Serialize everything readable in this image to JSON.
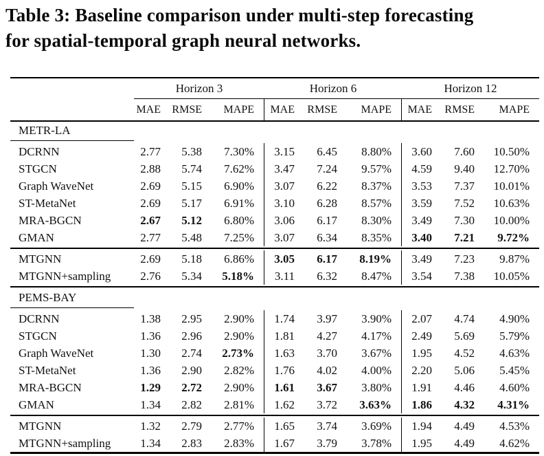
{
  "title": {
    "line1": "Table 3: Baseline comparison under multi-step forecasting",
    "line2": "for spatial-temporal graph neural networks."
  },
  "table": {
    "col_groups": [
      {
        "label": "Horizon 3"
      },
      {
        "label": "Horizon 6"
      },
      {
        "label": "Horizon 12"
      }
    ],
    "sub_headers": [
      "MAE",
      "RMSE",
      "MAPE"
    ],
    "sections": [
      {
        "name": "METR-LA",
        "groups": [
          {
            "rows": [
              {
                "model": "DCRNN",
                "values": [
                  "2.77",
                  "5.38",
                  "7.30%",
                  "3.15",
                  "6.45",
                  "8.80%",
                  "3.60",
                  "7.60",
                  "10.50%"
                ],
                "bold": []
              },
              {
                "model": "STGCN",
                "values": [
                  "2.88",
                  "5.74",
                  "7.62%",
                  "3.47",
                  "7.24",
                  "9.57%",
                  "4.59",
                  "9.40",
                  "12.70%"
                ],
                "bold": []
              },
              {
                "model": "Graph WaveNet",
                "values": [
                  "2.69",
                  "5.15",
                  "6.90%",
                  "3.07",
                  "6.22",
                  "8.37%",
                  "3.53",
                  "7.37",
                  "10.01%"
                ],
                "bold": []
              },
              {
                "model": "ST-MetaNet",
                "values": [
                  "2.69",
                  "5.17",
                  "6.91%",
                  "3.10",
                  "6.28",
                  "8.57%",
                  "3.59",
                  "7.52",
                  "10.63%"
                ],
                "bold": []
              },
              {
                "model": "MRA-BGCN",
                "values": [
                  "2.67",
                  "5.12",
                  "6.80%",
                  "3.06",
                  "6.17",
                  "8.30%",
                  "3.49",
                  "7.30",
                  "10.00%"
                ],
                "bold": [
                  0,
                  1
                ]
              },
              {
                "model": "GMAN",
                "values": [
                  "2.77",
                  "5.48",
                  "7.25%",
                  "3.07",
                  "6.34",
                  "8.35%",
                  "3.40",
                  "7.21",
                  "9.72%"
                ],
                "bold": [
                  6,
                  7,
                  8
                ]
              }
            ]
          },
          {
            "rows": [
              {
                "model": "MTGNN",
                "values": [
                  "2.69",
                  "5.18",
                  "6.86%",
                  "3.05",
                  "6.17",
                  "8.19%",
                  "3.49",
                  "7.23",
                  "9.87%"
                ],
                "bold": [
                  3,
                  4,
                  5
                ]
              },
              {
                "model": "MTGNN+sampling",
                "values": [
                  "2.76",
                  "5.34",
                  "5.18%",
                  "3.11",
                  "6.32",
                  "8.47%",
                  "3.54",
                  "7.38",
                  "10.05%"
                ],
                "bold": [
                  2
                ]
              }
            ]
          }
        ]
      },
      {
        "name": "PEMS-BAY",
        "groups": [
          {
            "rows": [
              {
                "model": "DCRNN",
                "values": [
                  "1.38",
                  "2.95",
                  "2.90%",
                  "1.74",
                  "3.97",
                  "3.90%",
                  "2.07",
                  "4.74",
                  "4.90%"
                ],
                "bold": []
              },
              {
                "model": "STGCN",
                "values": [
                  "1.36",
                  "2.96",
                  "2.90%",
                  "1.81",
                  "4.27",
                  "4.17%",
                  "2.49",
                  "5.69",
                  "5.79%"
                ],
                "bold": []
              },
              {
                "model": "Graph WaveNet",
                "values": [
                  "1.30",
                  "2.74",
                  "2.73%",
                  "1.63",
                  "3.70",
                  "3.67%",
                  "1.95",
                  "4.52",
                  "4.63%"
                ],
                "bold": [
                  2
                ]
              },
              {
                "model": "ST-MetaNet",
                "values": [
                  "1.36",
                  "2.90",
                  "2.82%",
                  "1.76",
                  "4.02",
                  "4.00%",
                  "2.20",
                  "5.06",
                  "5.45%"
                ],
                "bold": []
              },
              {
                "model": "MRA-BGCN",
                "values": [
                  "1.29",
                  "2.72",
                  "2.90%",
                  "1.61",
                  "3.67",
                  "3.80%",
                  "1.91",
                  "4.46",
                  "4.60%"
                ],
                "bold": [
                  0,
                  1,
                  3,
                  4
                ]
              },
              {
                "model": "GMAN",
                "values": [
                  "1.34",
                  "2.82",
                  "2.81%",
                  "1.62",
                  "3.72",
                  "3.63%",
                  "1.86",
                  "4.32",
                  "4.31%"
                ],
                "bold": [
                  5,
                  6,
                  7,
                  8
                ]
              }
            ]
          },
          {
            "rows": [
              {
                "model": "MTGNN",
                "values": [
                  "1.32",
                  "2.79",
                  "2.77%",
                  "1.65",
                  "3.74",
                  "3.69%",
                  "1.94",
                  "4.49",
                  "4.53%"
                ],
                "bold": []
              },
              {
                "model": "MTGNN+sampling",
                "values": [
                  "1.34",
                  "2.83",
                  "2.83%",
                  "1.67",
                  "3.79",
                  "3.78%",
                  "1.95",
                  "4.49",
                  "4.62%"
                ],
                "bold": []
              }
            ]
          }
        ]
      }
    ]
  }
}
